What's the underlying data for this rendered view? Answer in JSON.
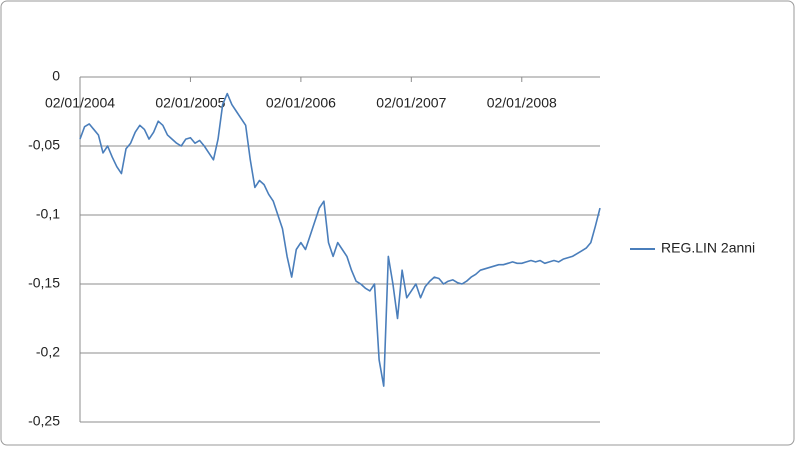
{
  "chart_data": {
    "type": "line",
    "categories": [
      "02/01/2004",
      null,
      null,
      null,
      null,
      null,
      null,
      null,
      null,
      null,
      null,
      null,
      null,
      null,
      null,
      null,
      null,
      null,
      null,
      null,
      null,
      null,
      null,
      null,
      "02/01/2005",
      null,
      null,
      null,
      null,
      null,
      null,
      null,
      null,
      null,
      null,
      null,
      null,
      null,
      null,
      null,
      null,
      null,
      null,
      null,
      null,
      null,
      null,
      null,
      "02/01/2006",
      null,
      null,
      null,
      null,
      null,
      null,
      null,
      null,
      null,
      null,
      null,
      null,
      null,
      null,
      null,
      null,
      null,
      null,
      null,
      null,
      null,
      null,
      null,
      "02/01/2007",
      null,
      null,
      null,
      null,
      null,
      null,
      null,
      null,
      null,
      null,
      null,
      null,
      null,
      null,
      null,
      null,
      null,
      null,
      null,
      null,
      null,
      null,
      null,
      "02/01/2008",
      null,
      null,
      null,
      null,
      null,
      null,
      null,
      null,
      null,
      null,
      null,
      null,
      null,
      null,
      null,
      null,
      null
    ],
    "series": [
      {
        "name": "REG.LIN 2anni",
        "color": "#4a7ebb",
        "values": [
          -0.045,
          -0.036,
          -0.034,
          -0.038,
          -0.042,
          -0.055,
          -0.05,
          -0.058,
          -0.065,
          -0.07,
          -0.052,
          -0.048,
          -0.04,
          -0.035,
          -0.038,
          -0.045,
          -0.04,
          -0.032,
          -0.035,
          -0.042,
          -0.045,
          -0.048,
          -0.05,
          -0.045,
          -0.044,
          -0.048,
          -0.046,
          -0.05,
          -0.055,
          -0.06,
          -0.045,
          -0.02,
          -0.012,
          -0.02,
          -0.025,
          -0.03,
          -0.035,
          -0.06,
          -0.08,
          -0.075,
          -0.078,
          -0.085,
          -0.09,
          -0.1,
          -0.11,
          -0.13,
          -0.145,
          -0.125,
          -0.12,
          -0.125,
          -0.115,
          -0.105,
          -0.095,
          -0.09,
          -0.12,
          -0.13,
          -0.12,
          -0.125,
          -0.13,
          -0.14,
          -0.148,
          -0.15,
          -0.153,
          -0.155,
          -0.15,
          -0.205,
          -0.224,
          -0.13,
          -0.15,
          -0.175,
          -0.14,
          -0.16,
          -0.155,
          -0.15,
          -0.16,
          -0.152,
          -0.148,
          -0.145,
          -0.146,
          -0.15,
          -0.148,
          -0.147,
          -0.149,
          -0.15,
          -0.148,
          -0.145,
          -0.143,
          -0.14,
          -0.139,
          -0.138,
          -0.137,
          -0.136,
          -0.136,
          -0.135,
          -0.134,
          -0.135,
          -0.135,
          -0.134,
          -0.133,
          -0.134,
          -0.133,
          -0.135,
          -0.134,
          -0.133,
          -0.134,
          -0.132,
          -0.131,
          -0.13,
          -0.128,
          -0.126,
          -0.124,
          -0.12,
          -0.108,
          -0.095
        ]
      }
    ],
    "ylim": [
      -0.25,
      0
    ],
    "yticks": [
      0,
      {
        "value": -0.05,
        "label": "-0,05"
      },
      {
        "value": -0.1,
        "label": "-0,1"
      },
      {
        "value": -0.15,
        "label": "-0,15"
      },
      {
        "value": -0.2,
        "label": "-0,2"
      },
      {
        "value": -0.25,
        "label": "-0,25"
      }
    ],
    "grid": true,
    "legend": "right"
  }
}
